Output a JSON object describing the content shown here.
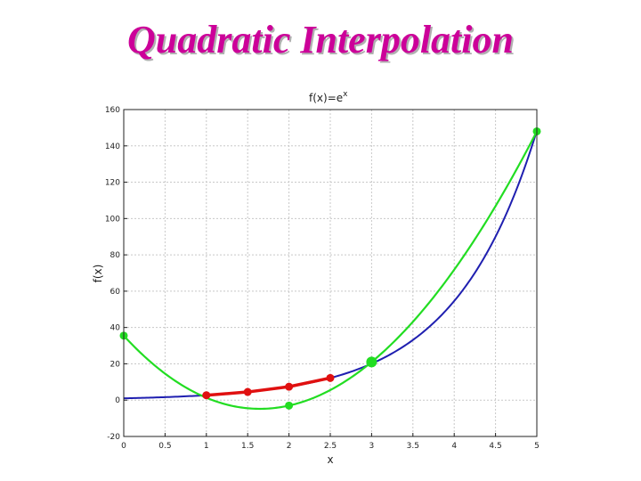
{
  "slide": {
    "title": "Quadratic Interpolation"
  },
  "colors": {
    "title": "#cc0099",
    "exp_curve": "#1f1fb0",
    "quadratic_curve": "#22dd22",
    "linear_segments": "#e01010",
    "grid": "#c8c8c8"
  },
  "chart_data": {
    "type": "line",
    "title": "f(x)=e",
    "title_superscript": "x",
    "xlabel": "x",
    "ylabel": "f(x)",
    "xlim": [
      0,
      5
    ],
    "ylim": [
      -20,
      160
    ],
    "grid": true,
    "x_ticks": [
      "0",
      "0.5",
      "1",
      "1.5",
      "2",
      "2.5",
      "3",
      "3.5",
      "4",
      "4.5",
      "5"
    ],
    "y_ticks": [
      "-20",
      "0",
      "20",
      "40",
      "60",
      "80",
      "100",
      "120",
      "140",
      "160"
    ],
    "series": [
      {
        "role": "exp-curve",
        "function": "exp",
        "x_range": [
          0,
          5
        ]
      },
      {
        "role": "quadratic-interpolant",
        "x_range": [
          0,
          5
        ],
        "points": [
          {
            "x": 0,
            "y": 35.5
          },
          {
            "x": 2,
            "y": -3
          },
          {
            "x": 3,
            "y": 21
          },
          {
            "x": 5,
            "y": 148
          }
        ]
      },
      {
        "role": "linear-segments",
        "points": [
          {
            "x": 1,
            "y": 2.7
          },
          {
            "x": 1.5,
            "y": 4.5
          },
          {
            "x": 2,
            "y": 7.4
          },
          {
            "x": 2.5,
            "y": 12.2
          }
        ]
      }
    ]
  }
}
